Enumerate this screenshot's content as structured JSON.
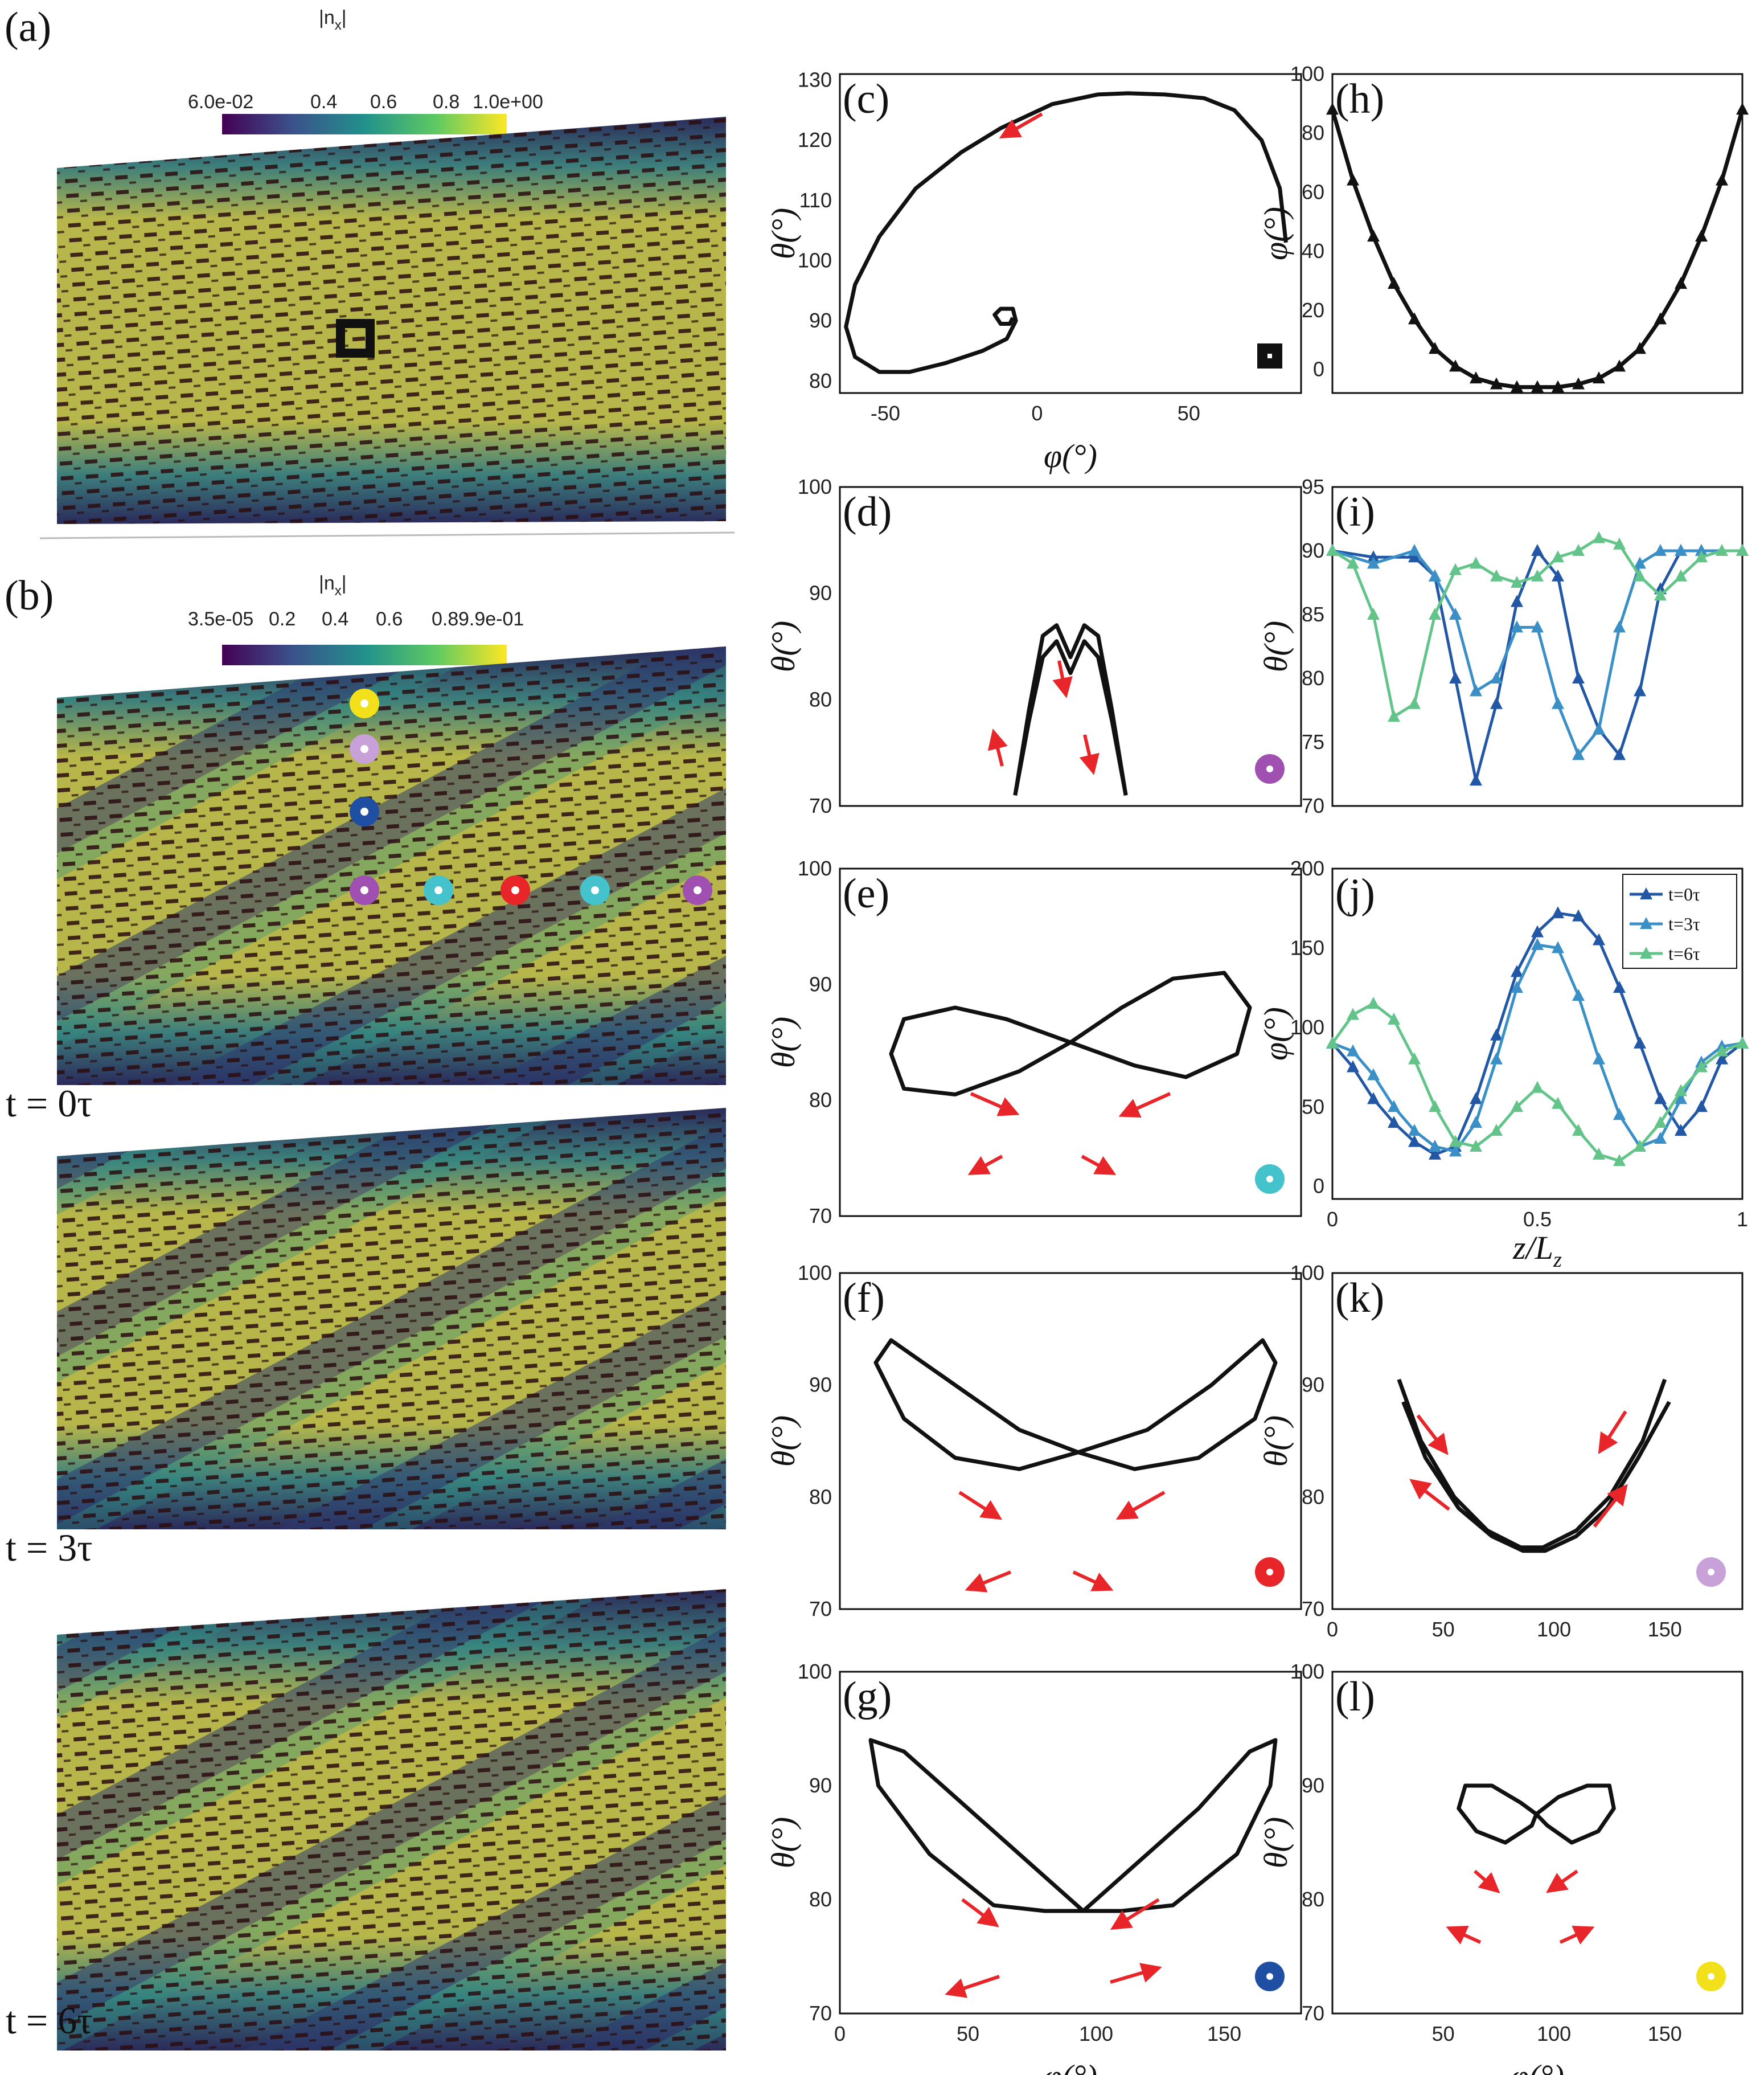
{
  "figure": {
    "panel_labels": {
      "a": "(a)",
      "b": "(b)",
      "c": "(c)",
      "d": "(d)",
      "e": "(e)",
      "f": "(f)",
      "g": "(g)",
      "h": "(h)",
      "i": "(i)",
      "j": "(j)",
      "k": "(k)",
      "l": "(l)"
    },
    "colorbar_a": {
      "title": "|n",
      "sub": "x",
      "ticks": [
        "6.0e-02",
        "0.4",
        "0.6",
        "0.8",
        "1.0e+00"
      ]
    },
    "colorbar_b": {
      "title": "|n",
      "sub": "x",
      "ticks": [
        "3.5e-05",
        "0.2",
        "0.4",
        "0.6",
        "0.8",
        "9.9e-01"
      ]
    },
    "time_labels": [
      "t = 0τ",
      "t = 3τ",
      "t = 6τ"
    ],
    "marker_colors": {
      "yellow": "#f2e11a",
      "lilac": "#c7a1d8",
      "blue": "#1f4fa3",
      "purple": "#a050b0",
      "cyan": "#45c3cc",
      "red": "#e8262a",
      "black": "#111111"
    },
    "arrow_color": "#e8262a",
    "colormap": [
      "#440154",
      "#3b528b",
      "#21918c",
      "#5ec962",
      "#fde725"
    ]
  },
  "axes_text": {
    "theta_label": "θ(°)",
    "phi_label": "φ(°)",
    "z_label": "z/L",
    "z_sub": "z"
  },
  "chart_data": [
    {
      "id": "c",
      "type": "line",
      "xlabel": "φ(°)",
      "ylabel": "θ(°)",
      "xlim": [
        -65,
        87
      ],
      "ylim": [
        78,
        131
      ],
      "xticks": [
        -50,
        0,
        50
      ],
      "yticks": [
        80,
        90,
        100,
        110,
        120,
        130
      ],
      "series": [
        {
          "x": [
            82,
            80,
            74,
            65,
            55,
            42,
            30,
            20,
            5,
            -12,
            -25,
            -40,
            -52,
            -60,
            -63,
            -60,
            -52,
            -42,
            -30,
            -18,
            -10,
            -7,
            -8,
            -12,
            -14,
            -12,
            -9,
            -8
          ],
          "y": [
            103,
            112,
            120,
            125,
            127,
            127.6,
            127.8,
            127.6,
            126,
            122,
            118,
            112,
            104,
            96,
            89,
            84,
            81.5,
            81.5,
            83,
            85,
            87,
            90,
            92,
            92,
            91,
            89.5,
            89.5,
            90.5
          ]
        }
      ],
      "marker": "black-square"
    },
    {
      "id": "d",
      "type": "line",
      "xlabel": "",
      "ylabel": "θ(°)",
      "xlim": [
        40,
        140
      ],
      "ylim": [
        70,
        100
      ],
      "yticks": [
        70,
        80,
        90,
        100
      ],
      "series": [
        {
          "x": [
            78,
            81,
            84,
            87,
            90,
            93,
            96,
            99,
            102
          ],
          "y": [
            71,
            79,
            86,
            87,
            84,
            87,
            86,
            79,
            71
          ]
        },
        {
          "x": [
            78,
            81,
            84,
            87,
            90,
            93,
            96,
            99,
            102
          ],
          "y": [
            71,
            78,
            84,
            85.5,
            82.5,
            85.5,
            84,
            78,
            71
          ]
        }
      ],
      "marker": "purple"
    },
    {
      "id": "e",
      "type": "line",
      "xlabel": "",
      "ylabel": "θ(°)",
      "xlim": [
        0,
        180
      ],
      "ylim": [
        70,
        100
      ],
      "yticks": [
        70,
        80,
        90,
        100
      ],
      "series": [
        {
          "x": [
            90,
            110,
            130,
            150,
            160,
            155,
            135,
            115,
            90,
            65,
            45,
            25,
            20,
            25,
            45,
            70,
            90
          ],
          "y": [
            85,
            88,
            90.5,
            91,
            88,
            84,
            82,
            83,
            85,
            87,
            88,
            87,
            84,
            81,
            80.5,
            82.5,
            85
          ]
        }
      ],
      "marker": "cyan"
    },
    {
      "id": "f",
      "type": "line",
      "xlabel": "",
      "ylabel": "θ(°)",
      "xlim": [
        0,
        180
      ],
      "ylim": [
        70,
        100
      ],
      "yticks": [
        70,
        80,
        90,
        100
      ],
      "series": [
        {
          "x": [
            93,
            120,
            145,
            165,
            170,
            162,
            140,
            115,
            93,
            70,
            45,
            25,
            14,
            20,
            45,
            70,
            93
          ],
          "y": [
            84,
            86,
            90,
            94,
            92,
            87,
            83.5,
            82.5,
            84,
            82.5,
            83.5,
            87,
            92,
            94,
            90,
            86,
            84
          ]
        }
      ],
      "marker": "red"
    },
    {
      "id": "g",
      "type": "line",
      "xlabel": "φ(°)",
      "ylabel": "θ(°)",
      "xlim": [
        0,
        180
      ],
      "ylim": [
        70,
        100
      ],
      "xticks": [
        0,
        50,
        100,
        150
      ],
      "yticks": [
        70,
        80,
        90,
        100
      ],
      "series": [
        {
          "x": [
            95,
            115,
            140,
            160,
            170,
            168,
            155,
            130,
            110,
            95,
            80,
            60,
            35,
            15,
            12,
            25,
            50,
            75,
            95
          ],
          "y": [
            79,
            83,
            88,
            93,
            94,
            90,
            84,
            79.5,
            79,
            79,
            79,
            79.5,
            84,
            90,
            94,
            93,
            88,
            83,
            79
          ]
        }
      ],
      "marker": "blue"
    },
    {
      "id": "h",
      "type": "line",
      "xlabel": "",
      "ylabel": "φ(°)",
      "xlim": [
        0,
        1
      ],
      "ylim": [
        -8,
        100
      ],
      "yticks": [
        0,
        20,
        40,
        60,
        80,
        100
      ],
      "series": [
        {
          "x": [
            0,
            0.05,
            0.1,
            0.15,
            0.2,
            0.25,
            0.3,
            0.35,
            0.4,
            0.45,
            0.5,
            0.55,
            0.6,
            0.65,
            0.7,
            0.75,
            0.8,
            0.85,
            0.9,
            0.95,
            1
          ],
          "y": [
            88,
            64,
            45,
            29,
            17,
            7,
            1,
            -3,
            -5,
            -6,
            -6,
            -6,
            -5,
            -3,
            1,
            7,
            17,
            29,
            45,
            64,
            88
          ]
        }
      ]
    },
    {
      "id": "i",
      "type": "line",
      "xlabel": "",
      "ylabel": "θ(°)",
      "xlim": [
        0,
        1
      ],
      "ylim": [
        70,
        95
      ],
      "yticks": [
        70,
        75,
        80,
        85,
        90,
        95
      ],
      "series": [
        {
          "name": "t=0τ",
          "color": "#2257a5",
          "x": [
            0,
            0.1,
            0.2,
            0.25,
            0.3,
            0.35,
            0.4,
            0.45,
            0.5,
            0.55,
            0.6,
            0.65,
            0.7,
            0.75,
            0.8,
            0.85,
            0.9,
            1
          ],
          "y": [
            90,
            89.5,
            89.5,
            88,
            80,
            72,
            78,
            86,
            90,
            88,
            80,
            76,
            74,
            79,
            87,
            90,
            90,
            90
          ]
        },
        {
          "name": "t=3τ",
          "color": "#3a8fc6",
          "x": [
            0,
            0.1,
            0.2,
            0.25,
            0.3,
            0.35,
            0.4,
            0.45,
            0.5,
            0.55,
            0.6,
            0.65,
            0.7,
            0.75,
            0.8,
            0.85,
            0.9,
            1
          ],
          "y": [
            90,
            89,
            90,
            88,
            85,
            79,
            80,
            84,
            84,
            78,
            74,
            76,
            84,
            89,
            90,
            90,
            90,
            90
          ]
        },
        {
          "name": "t=6τ",
          "color": "#63c48a",
          "x": [
            0,
            0.05,
            0.1,
            0.15,
            0.2,
            0.25,
            0.3,
            0.35,
            0.4,
            0.45,
            0.5,
            0.55,
            0.6,
            0.65,
            0.7,
            0.75,
            0.8,
            0.85,
            0.9,
            0.95,
            1
          ],
          "y": [
            90,
            89,
            85,
            77,
            78,
            85,
            88.5,
            89,
            88,
            87.5,
            88,
            89.5,
            90,
            91,
            90.5,
            88,
            86.5,
            88,
            89.5,
            90,
            90
          ]
        }
      ]
    },
    {
      "id": "j",
      "type": "line",
      "xlabel": "z/L_z",
      "ylabel": "φ(°)",
      "xlim": [
        0,
        1
      ],
      "ylim": [
        -8,
        200
      ],
      "xticks": [
        0,
        0.5,
        1
      ],
      "yticks": [
        0,
        50,
        100,
        150,
        200
      ],
      "legend": [
        "t=0τ",
        "t=3τ",
        "t=6τ"
      ],
      "series": [
        {
          "name": "t=0τ",
          "color": "#2257a5",
          "x": [
            0,
            0.05,
            0.1,
            0.15,
            0.2,
            0.25,
            0.3,
            0.35,
            0.4,
            0.45,
            0.5,
            0.55,
            0.6,
            0.65,
            0.7,
            0.75,
            0.8,
            0.85,
            0.9,
            0.95,
            1
          ],
          "y": [
            90,
            75,
            55,
            40,
            28,
            20,
            25,
            55,
            95,
            135,
            160,
            172,
            170,
            155,
            125,
            90,
            55,
            35,
            50,
            80,
            90
          ]
        },
        {
          "name": "t=3τ",
          "color": "#3a8fc6",
          "x": [
            0,
            0.05,
            0.1,
            0.15,
            0.2,
            0.25,
            0.3,
            0.35,
            0.4,
            0.45,
            0.5,
            0.55,
            0.6,
            0.65,
            0.7,
            0.75,
            0.8,
            0.85,
            0.9,
            0.95,
            1
          ],
          "y": [
            90,
            85,
            70,
            50,
            35,
            25,
            22,
            40,
            80,
            125,
            152,
            150,
            120,
            80,
            45,
            25,
            30,
            55,
            78,
            88,
            90
          ]
        },
        {
          "name": "t=6τ",
          "color": "#63c48a",
          "x": [
            0,
            0.05,
            0.1,
            0.15,
            0.2,
            0.25,
            0.3,
            0.35,
            0.4,
            0.45,
            0.5,
            0.55,
            0.6,
            0.65,
            0.7,
            0.75,
            0.8,
            0.85,
            0.9,
            0.95,
            1
          ],
          "y": [
            90,
            108,
            115,
            105,
            80,
            50,
            28,
            25,
            35,
            50,
            62,
            52,
            35,
            20,
            16,
            25,
            40,
            60,
            75,
            85,
            90
          ]
        }
      ]
    },
    {
      "id": "k",
      "type": "line",
      "xlabel": "",
      "ylabel": "θ(°)",
      "xlim": [
        0,
        185
      ],
      "ylim": [
        70,
        100
      ],
      "xticks": [
        0,
        50,
        100,
        150
      ],
      "yticks": [
        70,
        80,
        90,
        100
      ],
      "series": [
        {
          "x": [
            30,
            40,
            55,
            70,
            85,
            95,
            110,
            125,
            140,
            150
          ],
          "y": [
            90.5,
            85,
            80,
            77,
            75.5,
            75.5,
            77,
            80,
            85,
            90.5
          ]
        },
        {
          "x": [
            32,
            42,
            57,
            72,
            86,
            96,
            110,
            124,
            138,
            152
          ],
          "y": [
            88.5,
            83.5,
            79,
            76.5,
            75.2,
            75.2,
            76.5,
            79,
            83.5,
            88.5
          ]
        }
      ],
      "marker": "lilac"
    },
    {
      "id": "l",
      "type": "line",
      "xlabel": "φ(°)",
      "ylabel": "θ(°)",
      "xlim": [
        0,
        185
      ],
      "ylim": [
        70,
        100
      ],
      "xticks": [
        50,
        100,
        150
      ],
      "yticks": [
        70,
        80,
        90,
        100
      ],
      "series": [
        {
          "x": [
            92,
            102,
            115,
            125,
            127,
            120,
            108,
            97,
            92,
            85,
            72,
            60,
            57,
            65,
            78,
            90,
            92
          ],
          "y": [
            87.5,
            89,
            90,
            90,
            88,
            86,
            85,
            86.5,
            87.5,
            88.5,
            90,
            90,
            88,
            86,
            85,
            86.5,
            87.5
          ]
        }
      ],
      "marker": "yellow"
    }
  ]
}
